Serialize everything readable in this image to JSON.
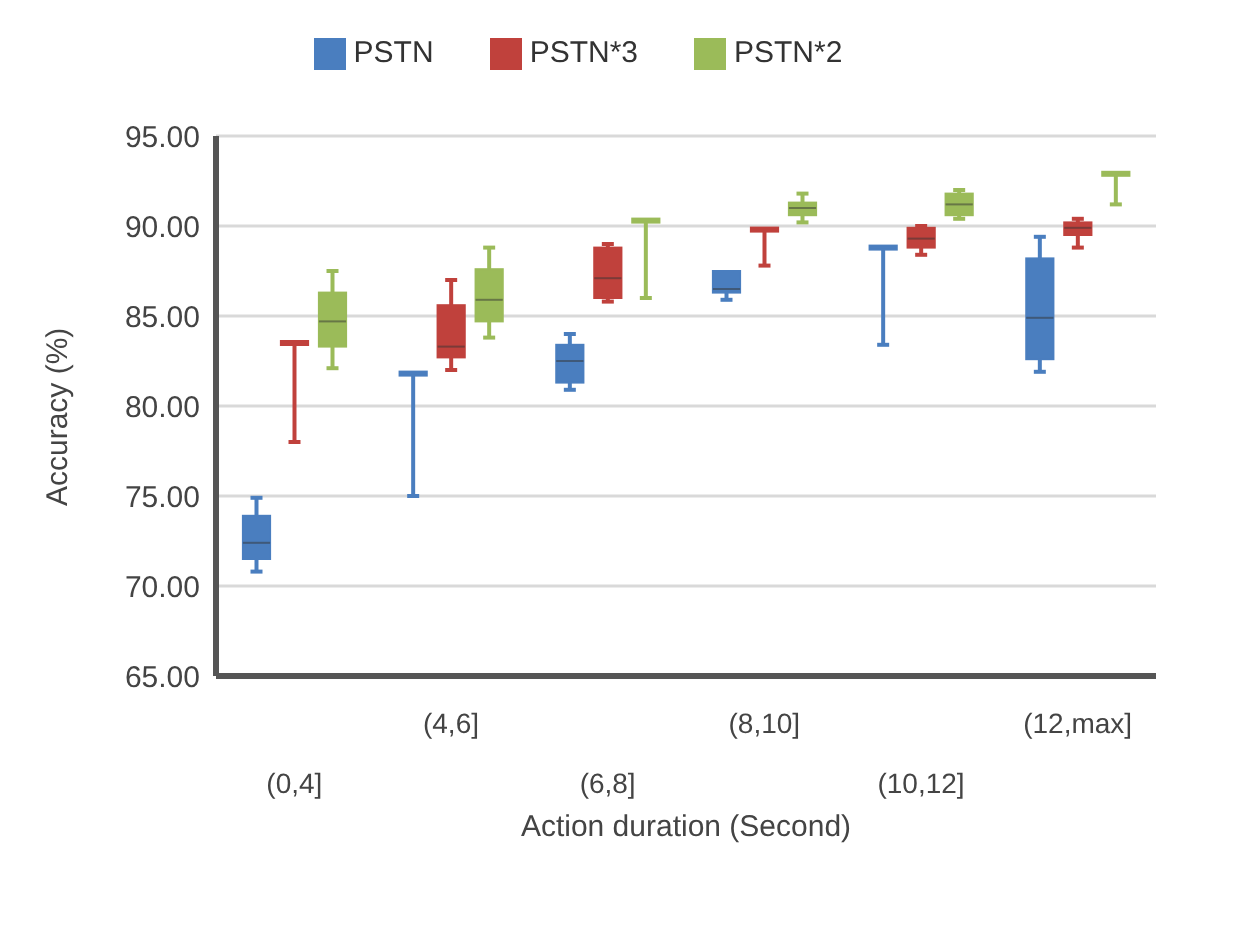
{
  "chart_data": {
    "type": "box",
    "xlabel": "Action duration (Second)",
    "ylabel": "Accuracy (%)",
    "categories": [
      "(0,4]",
      "(4,6]",
      "(6,8]",
      "(8,10]",
      "(10,12]",
      "(12,max]"
    ],
    "ylim": [
      65,
      95
    ],
    "yticks": [
      {
        "value": 65,
        "label": "65.00"
      },
      {
        "value": 70,
        "label": "70.00"
      },
      {
        "value": 75,
        "label": "75.00"
      },
      {
        "value": 80,
        "label": "80.00"
      },
      {
        "value": 85,
        "label": "85.00"
      },
      {
        "value": 90,
        "label": "90.00"
      },
      {
        "value": 95,
        "label": "95.00"
      }
    ],
    "grid": "y",
    "legend": "top",
    "series": [
      {
        "name": "PSTN",
        "color": "#4a7ebf",
        "boxes": [
          {
            "low": 70.8,
            "q1": 71.5,
            "median": 72.4,
            "q3": 73.9,
            "high": 74.9
          },
          {
            "low": 75,
            "q1": 81.8,
            "median": 81.8,
            "q3": 81.8,
            "high": 81.8
          },
          {
            "low": 80.9,
            "q1": 81.3,
            "median": 82.5,
            "q3": 83.4,
            "high": 84
          },
          {
            "low": 85.9,
            "q1": 86.3,
            "median": 86.5,
            "q3": 87.5,
            "high": 87.5
          },
          {
            "low": 83.4,
            "q1": 88.8,
            "median": 88.8,
            "q3": 88.8,
            "high": 88.8
          },
          {
            "low": 81.9,
            "q1": 82.6,
            "median": 84.9,
            "q3": 88.2,
            "high": 89.4
          }
        ]
      },
      {
        "name": "PSTN*3",
        "color": "#c0413c",
        "boxes": [
          {
            "low": 78,
            "q1": 83.5,
            "median": 83.5,
            "q3": 83.5,
            "high": 83.5
          },
          {
            "low": 82,
            "q1": 82.7,
            "median": 83.3,
            "q3": 85.6,
            "high": 87
          },
          {
            "low": 85.8,
            "q1": 86,
            "median": 87.1,
            "q3": 88.8,
            "high": 89
          },
          {
            "low": 87.8,
            "q1": 89.8,
            "median": 89.8,
            "q3": 89.8,
            "high": 89.8
          },
          {
            "low": 88.4,
            "q1": 88.8,
            "median": 89.3,
            "q3": 89.9,
            "high": 90
          },
          {
            "low": 88.8,
            "q1": 89.5,
            "median": 89.9,
            "q3": 90.2,
            "high": 90.4
          }
        ]
      },
      {
        "name": "PSTN*2",
        "color": "#9bbb59",
        "boxes": [
          {
            "low": 82.1,
            "q1": 83.3,
            "median": 84.7,
            "q3": 86.3,
            "high": 87.5
          },
          {
            "low": 83.8,
            "q1": 84.7,
            "median": 85.9,
            "q3": 87.6,
            "high": 88.8
          },
          {
            "low": 86,
            "q1": 90.3,
            "median": 90.3,
            "q3": 90.3,
            "high": 90.3
          },
          {
            "low": 90.2,
            "q1": 90.6,
            "median": 91,
            "q3": 91.3,
            "high": 91.8
          },
          {
            "low": 90.4,
            "q1": 90.6,
            "median": 91.2,
            "q3": 91.8,
            "high": 92
          },
          {
            "low": 91.2,
            "q1": 92.9,
            "median": 92.9,
            "q3": 92.9,
            "high": 92.9
          }
        ]
      }
    ]
  }
}
